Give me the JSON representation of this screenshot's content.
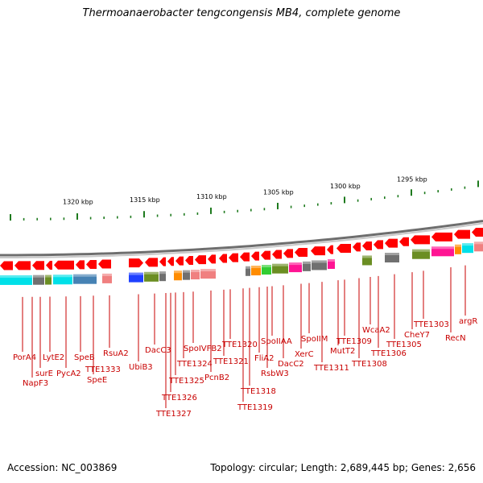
{
  "title": "Thermoanaerobacter tengcongensis MB4, complete genome",
  "footer": {
    "accession": "Accession: NC_003869",
    "summary": "Topology: circular; Length: 2,689,445 bp; Genes: 2,656"
  },
  "scale_labels": [
    "1320 kbp",
    "1315 kbp",
    "1310 kbp",
    "1305 kbp",
    "1300 kbp",
    "1295 kbp"
  ],
  "gene_labels": [
    "PorA4",
    "NapF3",
    "surE",
    "LytE2",
    "PycA2",
    "SpeB",
    "SpeE",
    "TTE1333",
    "RsuA2",
    "UbiB3",
    "DacC3",
    "TTE1327",
    "TTE1326",
    "TTE1325",
    "TTE1324",
    "SpoIVFB2",
    "PcnB2",
    "TTE1321",
    "TTE1320",
    "TTE1319",
    "TTE1318",
    "FliA2",
    "RsbW3",
    "SpoIIAA",
    "DacC2",
    "XerC",
    "SpoIIM",
    "TTE1311",
    "MutT2",
    "TTE1309",
    "TTE1308",
    "WcaA2",
    "TTE1306",
    "TTE1305",
    "CheY7",
    "TTE1303",
    "RecN",
    "argR"
  ],
  "colors": {
    "gene_arrow": "#ff0000",
    "backbone": "#8c8c8c",
    "tick": "#1e7a1e",
    "label": "#c80000",
    "cyan_block": "#00e0e8",
    "olive_block": "#6b8e23",
    "magenta_block": "#ff1493",
    "gray_block": "#707070",
    "steelblue_block": "#4682b4",
    "pink_block": "#f08080",
    "orange_block": "#ff8c00",
    "green_block": "#32cd32",
    "blue_block": "#1e40ff"
  }
}
